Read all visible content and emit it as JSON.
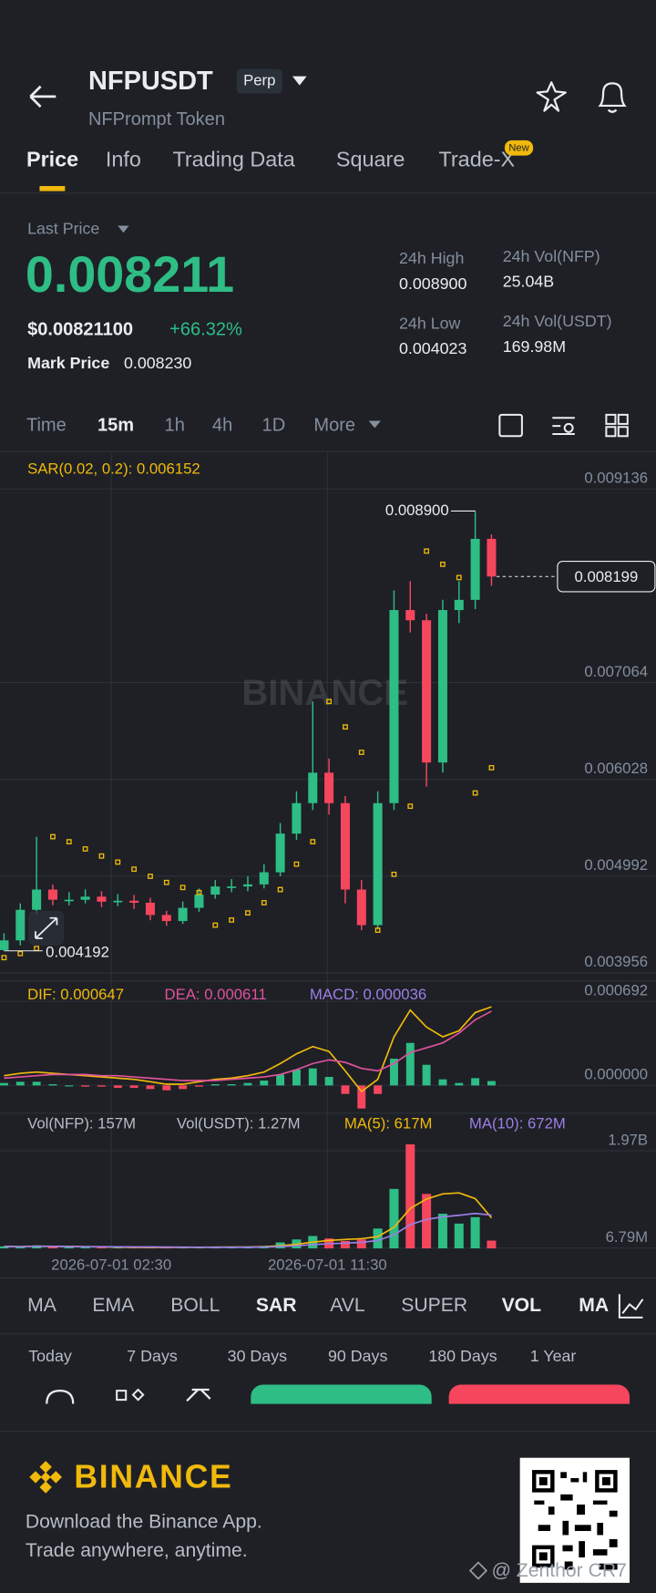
{
  "header": {
    "symbol": "NFPUSDT",
    "badge": "Perp",
    "name": "NFPrompt Token"
  },
  "tabs": [
    "Price",
    "Info",
    "Trading Data",
    "Square",
    "Trade-X"
  ],
  "tab_badge": "New",
  "price": {
    "label": "Last Price",
    "last": "0.008211",
    "usd": "$0.00821100",
    "change": "+66.32%",
    "mark_label": "Mark Price",
    "mark": "0.008230"
  },
  "stats": [
    {
      "label": "24h High",
      "value": "0.008900"
    },
    {
      "label": "24h Vol(NFP)",
      "value": "25.04B"
    },
    {
      "label": "24h Low",
      "value": "0.004023"
    },
    {
      "label": "24h Vol(USDT)",
      "value": "169.98M"
    }
  ],
  "intervals": [
    "Time",
    "15m",
    "1h",
    "4h",
    "1D",
    "More"
  ],
  "indicators": [
    "MA",
    "EMA",
    "BOLL",
    "SAR",
    "AVL",
    "SUPER",
    "VOL",
    "MACD"
  ],
  "ranges": [
    "Today",
    "7 Days",
    "30 Days",
    "90 Days",
    "180 Days",
    "1 Year"
  ],
  "footer": {
    "brand": "BINANCE",
    "line1": "Download the Binance App.",
    "line2": "Trade anywhere, anytime.",
    "watermark": "@ Zenthor CR7"
  },
  "chart_data": [
    {
      "type": "candlestick",
      "title": "SAR(0.02, 0.2): 0.006152",
      "watermark": "BINANCE",
      "up_color": "#2ebd85",
      "down_color": "#f6465d",
      "open": [
        0.0042,
        0.004304,
        0.004631,
        0.004848,
        0.004739,
        0.004739,
        0.004772,
        0.004718,
        0.004728,
        0.004707,
        0.004576,
        0.004511,
        0.004652,
        0.004794,
        0.004881,
        0.004881,
        0.004903,
        0.005033,
        0.005447,
        0.005773,
        0.006099,
        0.005773,
        0.004848,
        0.004467,
        0.005773,
        0.00784,
        0.007731,
        0.006208,
        0.00784,
        0.007949,
        0.008602
      ],
      "high": [
        0.00438,
        0.0047,
        0.005414,
        0.0049,
        0.00482,
        0.00485,
        0.00483,
        0.0048,
        0.00479,
        0.00476,
        0.00462,
        0.00472,
        0.00486,
        0.00495,
        0.00496,
        0.00499,
        0.00512,
        0.00556,
        0.0059,
        0.006861,
        0.00625,
        0.00585,
        0.00495,
        0.0059,
        0.00805,
        0.00815,
        0.0078,
        0.00795,
        0.00815,
        0.0089,
        0.00865
      ],
      "low": [
        0.004192,
        0.00425,
        0.00458,
        0.00468,
        0.00468,
        0.0047,
        0.00466,
        0.00467,
        0.00464,
        0.00452,
        0.00446,
        0.00448,
        0.00461,
        0.00475,
        0.00482,
        0.00483,
        0.00486,
        0.00499,
        0.00538,
        0.0057,
        0.00565,
        0.0047,
        0.004413,
        0.00442,
        0.0057,
        0.0076,
        0.00595,
        0.0061,
        0.0077,
        0.00785,
        0.0081
      ],
      "close": [
        0.004304,
        0.004631,
        0.004848,
        0.004739,
        0.004739,
        0.004772,
        0.004718,
        0.004728,
        0.004707,
        0.004576,
        0.004511,
        0.004652,
        0.004794,
        0.004881,
        0.004881,
        0.004903,
        0.005033,
        0.005447,
        0.005773,
        0.006099,
        0.005773,
        0.004848,
        0.004467,
        0.005773,
        0.00784,
        0.007731,
        0.006208,
        0.00784,
        0.007949,
        0.008602,
        0.008199
      ],
      "sar": {
        "color": "#f0b90b",
        "values": [
          0.004119,
          0.004163,
          0.004217,
          0.005414,
          0.00536,
          0.005283,
          0.005207,
          0.005142,
          0.005066,
          0.00499,
          0.004924,
          0.00487,
          0.004816,
          0.004467,
          0.004522,
          0.004598,
          0.004707,
          0.004848,
          0.00512,
          0.00536,
          0.006861,
          0.006589,
          0.006317,
          0.004413,
          0.005011,
          0.00574,
          0.008471,
          0.00833,
          0.008188,
          0.005882,
          0.006152
        ]
      },
      "high_marker": {
        "value": 0.0089,
        "label": "0.008900"
      },
      "low_marker": {
        "value": 0.004192,
        "label": "0.004192"
      },
      "last_marker": {
        "value": 0.008199,
        "label": "0.008199"
      },
      "ylim": [
        0.003956,
        0.009136
      ],
      "yticks": [
        0.009136,
        0.007064,
        0.006028,
        0.004992,
        0.003956
      ],
      "grid": true
    },
    {
      "type": "macd",
      "series": [
        {
          "name": "DIF: 0.000647",
          "color": "#f0b90b",
          "values": [
            8e-05,
            0.0001,
            0.00011,
            0.0001,
            9e-05,
            8e-05,
            7e-05,
            6e-05,
            5e-05,
            3e-05,
            1e-05,
            1e-05,
            3e-05,
            5e-05,
            6e-05,
            8e-05,
            0.00011,
            0.00018,
            0.00026,
            0.00032,
            0.00028,
            0.00012,
            -5e-05,
            5e-05,
            0.0004,
            0.00062,
            0.00048,
            0.0004,
            0.00045,
            0.0006,
            0.000647
          ]
        },
        {
          "name": "DEA: 0.000611",
          "color": "#e0529c",
          "values": [
            6e-05,
            7e-05,
            8e-05,
            9e-05,
            9e-05,
            9e-05,
            8e-05,
            8e-05,
            7e-05,
            6e-05,
            5e-05,
            4e-05,
            4e-05,
            4e-05,
            5e-05,
            6e-05,
            7e-05,
            9e-05,
            0.00013,
            0.00018,
            0.00021,
            0.00019,
            0.00014,
            0.00012,
            0.00018,
            0.00027,
            0.00031,
            0.00035,
            0.00043,
            0.00054,
            0.000611
          ]
        },
        {
          "name": "MACD: 0.000036",
          "color": "#9b7fe6",
          "values": [
            2e-05,
            3e-05,
            3e-05,
            1e-05,
            0,
            -1e-05,
            -1e-05,
            -2e-05,
            -2e-05,
            -3e-05,
            -4e-05,
            -3e-05,
            -1e-05,
            1e-05,
            1e-05,
            2e-05,
            4e-05,
            9e-05,
            0.00013,
            0.00014,
            7e-05,
            -7e-05,
            -0.00019,
            -7e-05,
            0.00022,
            0.00035,
            0.00017,
            5e-05,
            2e-05,
            6e-05,
            3.6e-05
          ]
        }
      ],
      "ylim": [
        -0.00022,
        0.000692
      ],
      "yticks": [
        0.000692,
        {
          "value": 0,
          "label": "0.000000"
        }
      ]
    },
    {
      "type": "volume",
      "volume_usdt_label": "Vol(USDT): 1.27M",
      "series": [
        {
          "name": "Vol(NFP): 157M",
          "values": [
            40000000,
            30000000,
            60000000,
            35000000,
            25000000,
            20000000,
            20000000,
            15000000,
            20000000,
            20000000,
            25000000,
            20000000,
            30000000,
            25000000,
            30000000,
            35000000,
            50000000,
            120000000,
            180000000,
            250000000,
            200000000,
            150000000,
            180000000,
            400000000,
            1200000000,
            2100000000,
            1100000000,
            700000000,
            500000000,
            630000000,
            157000000
          ]
        },
        {
          "name": "MA(5): 617M",
          "color": "#f0b90b",
          "values": [
            40000000,
            35000000,
            43000000,
            41000000,
            38000000,
            34000000,
            32000000,
            24000000,
            20000000,
            19000000,
            20000000,
            20000000,
            23000000,
            24000000,
            26000000,
            28000000,
            34000000,
            52000000,
            83000000,
            127000000,
            160000000,
            180000000,
            196000000,
            236000000,
            426000000,
            806000000,
            996000000,
            1100000000,
            1120000000,
            1006000000,
            617000000
          ]
        },
        {
          "name": "MA(10): 672M",
          "color": "#9b7fe6",
          "values": [
            40000000,
            35000000,
            43000000,
            41000000,
            38000000,
            35000000,
            33000000,
            31000000,
            29000000,
            29000000,
            26000000,
            24000000,
            23000000,
            22000000,
            23000000,
            24000000,
            27000000,
            37000000,
            53000000,
            76000000,
            94000000,
            106000000,
            121000000,
            158000000,
            275000000,
            480000000,
            584000000,
            636000000,
            668000000,
            705000000,
            672000000
          ]
        }
      ],
      "ylim": [
        0,
        1970000000
      ],
      "yticks": [
        {
          "value": 1970000000,
          "label": "1.97B"
        },
        {
          "value": 6790000,
          "label": "6.79M"
        }
      ],
      "xticks": [
        {
          "value": 6.6,
          "label": "2026-07-01 02:30"
        },
        {
          "value": 19.9,
          "label": "2026-07-01 11:30"
        }
      ]
    }
  ]
}
